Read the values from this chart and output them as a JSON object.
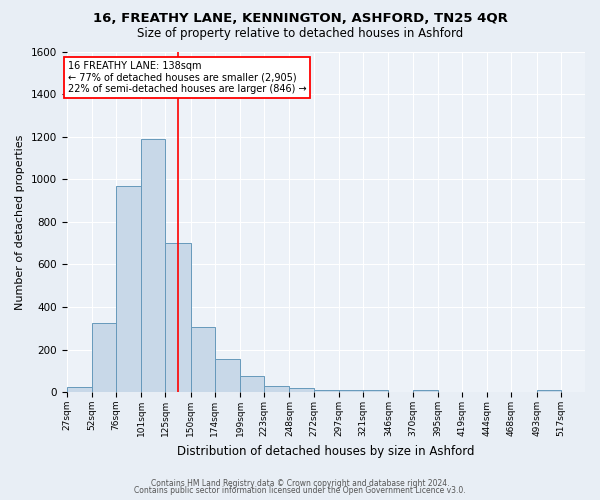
{
  "title1": "16, FREATHY LANE, KENNINGTON, ASHFORD, TN25 4QR",
  "title2": "Size of property relative to detached houses in Ashford",
  "xlabel": "Distribution of detached houses by size in Ashford",
  "ylabel": "Number of detached properties",
  "footer1": "Contains HM Land Registry data © Crown copyright and database right 2024.",
  "footer2": "Contains public sector information licensed under the Open Government Licence v3.0.",
  "annotation_line1": "16 FREATHY LANE: 138sqm",
  "annotation_line2": "← 77% of detached houses are smaller (2,905)",
  "annotation_line3": "22% of semi-detached houses are larger (846) →",
  "property_size": 138,
  "bar_labels": [
    "27sqm",
    "52sqm",
    "76sqm",
    "101sqm",
    "125sqm",
    "150sqm",
    "174sqm",
    "199sqm",
    "223sqm",
    "248sqm",
    "272sqm",
    "297sqm",
    "321sqm",
    "346sqm",
    "370sqm",
    "395sqm",
    "419sqm",
    "444sqm",
    "468sqm",
    "493sqm",
    "517sqm"
  ],
  "bar_values": [
    25,
    325,
    970,
    1190,
    700,
    305,
    155,
    75,
    28,
    18,
    10,
    8,
    10,
    0,
    12,
    0,
    0,
    0,
    0,
    12,
    0
  ],
  "bin_edges": [
    27,
    52,
    76,
    101,
    125,
    150,
    174,
    199,
    223,
    248,
    272,
    297,
    321,
    346,
    370,
    395,
    419,
    444,
    468,
    493,
    517,
    541
  ],
  "bar_color": "#c8d8e8",
  "bar_edge_color": "#6699bb",
  "red_line_x": 138,
  "ylim": [
    0,
    1600
  ],
  "yticks": [
    0,
    200,
    400,
    600,
    800,
    1000,
    1200,
    1400,
    1600
  ],
  "bg_color": "#e8eef5",
  "plot_bg_color": "#edf2f8"
}
